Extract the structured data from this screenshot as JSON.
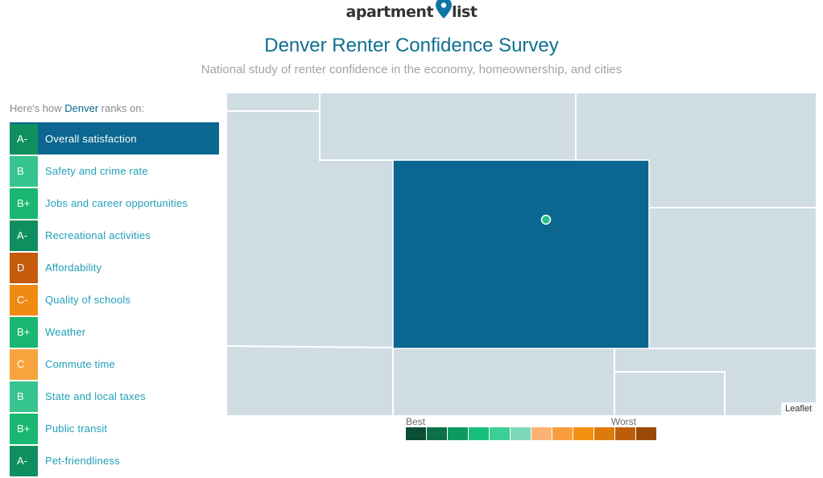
{
  "header": {
    "logo_left": "apartment",
    "logo_right": "list",
    "title": "Denver Renter Confidence Survey",
    "subtitle": "National study of renter confidence in the economy, homeownership, and cities"
  },
  "ranks_intro": {
    "prefix": "Here's how ",
    "city": "Denver",
    "suffix": " ranks on:"
  },
  "categories": [
    {
      "grade": "A-",
      "label": "Overall satisfaction",
      "color": "#0f8f5f"
    },
    {
      "grade": "B",
      "label": "Safety and crime rate",
      "color": "#36c48f"
    },
    {
      "grade": "B+",
      "label": "Jobs and career opportunities",
      "color": "#18b870"
    },
    {
      "grade": "A-",
      "label": "Recreational activities",
      "color": "#0f8f5f"
    },
    {
      "grade": "D",
      "label": "Affordability",
      "color": "#c45a0c"
    },
    {
      "grade": "C-",
      "label": "Quality of schools",
      "color": "#f08a12"
    },
    {
      "grade": "B+",
      "label": "Weather",
      "color": "#18b870"
    },
    {
      "grade": "C",
      "label": "Commute time",
      "color": "#f7a43c"
    },
    {
      "grade": "B",
      "label": "State and local taxes",
      "color": "#36c48f"
    },
    {
      "grade": "B+",
      "label": "Public transit",
      "color": "#18b870"
    },
    {
      "grade": "A-",
      "label": "Pet-friendliness",
      "color": "#0f8f5f"
    }
  ],
  "active_category_index": 0,
  "map": {
    "attribution": "Leaflet",
    "region_fill": "#cfdde3",
    "highlight_fill": "#0b6690",
    "marker_color": "#2fbf8a"
  },
  "legend": {
    "best_label": "Best",
    "worst_label": "Worst",
    "colors": [
      "#0c4d36",
      "#0c7048",
      "#0f9a62",
      "#19c07c",
      "#3ecf98",
      "#7fd9b9",
      "#fbb373",
      "#f99e3e",
      "#f3900f",
      "#dd7a0b",
      "#bd5f08",
      "#9a4a06"
    ]
  }
}
